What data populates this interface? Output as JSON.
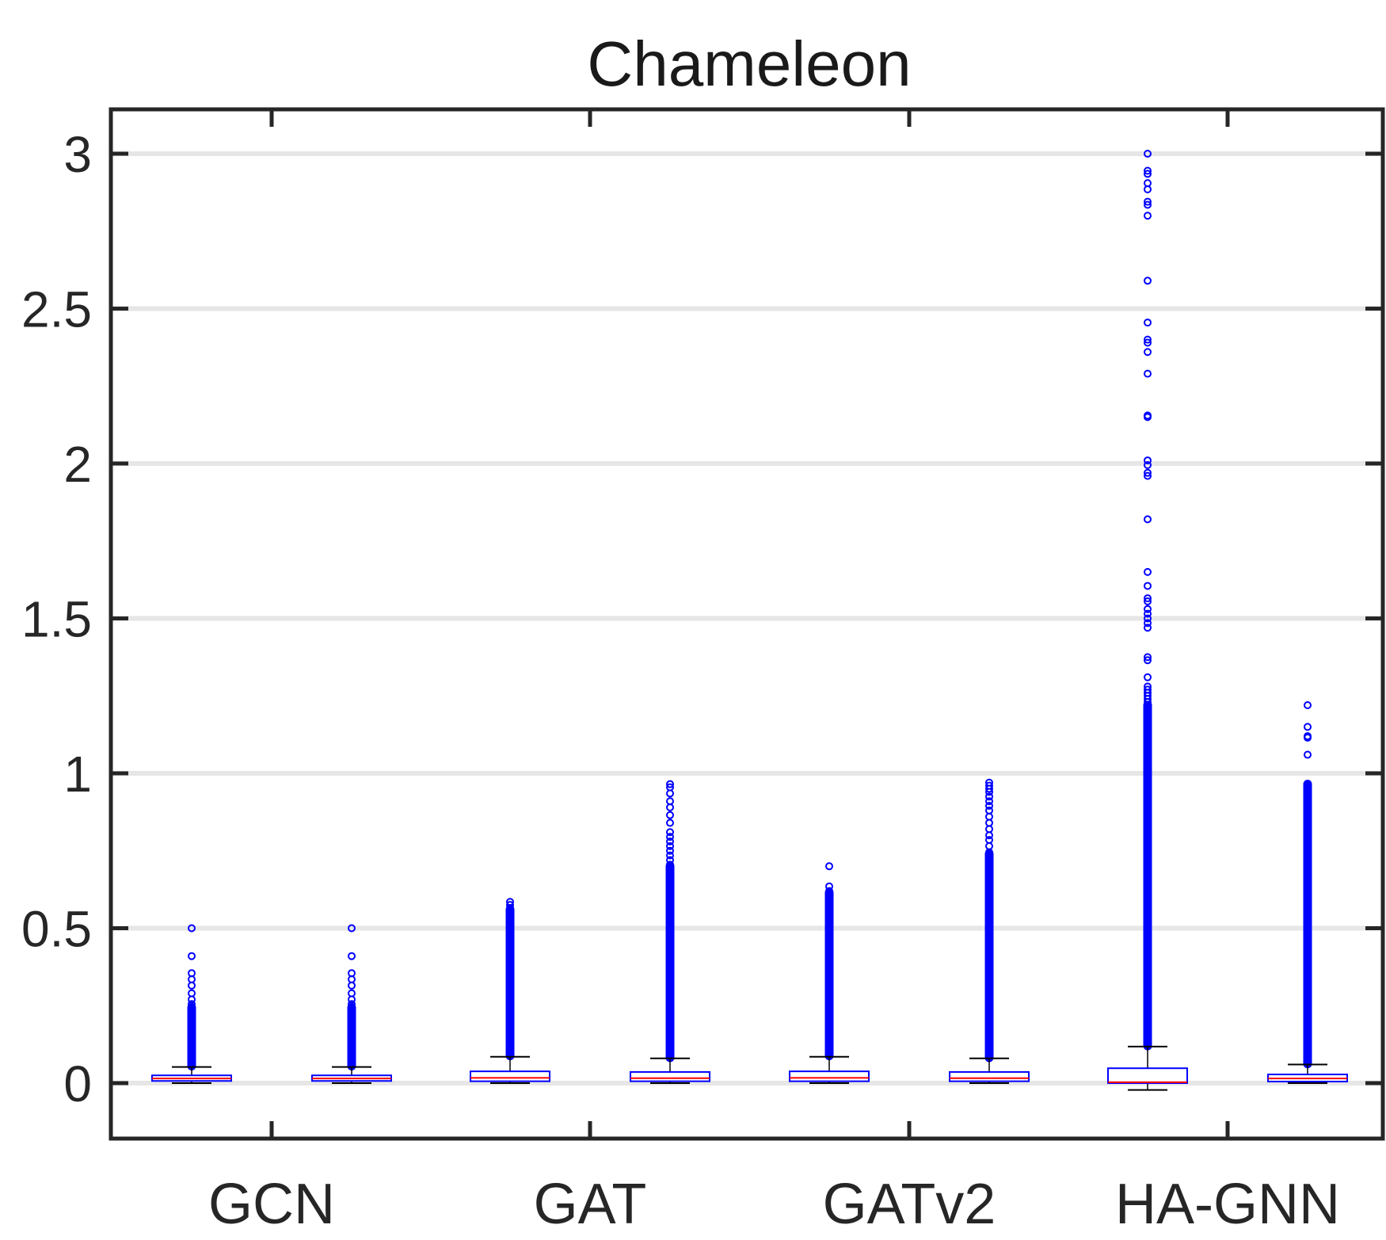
{
  "chart_data": {
    "type": "boxplot",
    "title": "Chameleon",
    "xlabel": "",
    "ylabel": "",
    "ylim": [
      -0.17,
      3.15
    ],
    "yticks": [
      0,
      0.5,
      1,
      1.5,
      2,
      2.5,
      3
    ],
    "ytick_labels": [
      "0",
      "0.5",
      "1",
      "1.5",
      "2",
      "2.5",
      "3"
    ],
    "grid": "horizontal",
    "categories": [
      "GCN",
      "GAT",
      "GATv2",
      "HA-GNN"
    ],
    "colors": {
      "box": "#0000ff",
      "median": "#ff0000",
      "outlier": "#0000ff",
      "whisker": "#000000",
      "grid": "#e6e6e6",
      "axis": "#262626"
    },
    "boxes": [
      {
        "group": "GCN",
        "slot": 0,
        "q1": 0.007,
        "median": 0.015,
        "q3": 0.025,
        "whisker_low": 0.0,
        "whisker_high": 0.052,
        "outliers": [
          0.5,
          0.41,
          0.355,
          0.335,
          0.315,
          0.29,
          0.27,
          0.255
        ],
        "outlier_band": [
          0.055,
          0.245
        ]
      },
      {
        "group": "GCN",
        "slot": 1,
        "q1": 0.007,
        "median": 0.015,
        "q3": 0.025,
        "whisker_low": 0.0,
        "whisker_high": 0.052,
        "outliers": [
          0.5,
          0.41,
          0.355,
          0.335,
          0.315,
          0.29,
          0.27,
          0.255
        ],
        "outlier_band": [
          0.055,
          0.245
        ]
      },
      {
        "group": "GAT",
        "slot": 0,
        "q1": 0.006,
        "median": 0.017,
        "q3": 0.038,
        "whisker_low": 0.0,
        "whisker_high": 0.085,
        "outliers": [
          0.585,
          0.575,
          0.565
        ],
        "outlier_band": [
          0.088,
          0.56
        ]
      },
      {
        "group": "GAT",
        "slot": 1,
        "q1": 0.006,
        "median": 0.016,
        "q3": 0.036,
        "whisker_low": 0.0,
        "whisker_high": 0.08,
        "outliers": [
          0.965,
          0.955,
          0.935,
          0.91,
          0.89,
          0.865,
          0.84,
          0.81,
          0.795,
          0.78,
          0.765,
          0.75,
          0.735,
          0.72,
          0.705
        ],
        "outlier_band": [
          0.082,
          0.7
        ]
      },
      {
        "group": "GATv2",
        "slot": 0,
        "q1": 0.006,
        "median": 0.017,
        "q3": 0.038,
        "whisker_low": 0.0,
        "whisker_high": 0.085,
        "outliers": [
          0.7,
          0.635,
          0.62
        ],
        "outlier_band": [
          0.088,
          0.615
        ]
      },
      {
        "group": "GATv2",
        "slot": 1,
        "q1": 0.006,
        "median": 0.016,
        "q3": 0.036,
        "whisker_low": 0.0,
        "whisker_high": 0.08,
        "outliers": [
          0.97,
          0.96,
          0.95,
          0.94,
          0.925,
          0.91,
          0.895,
          0.88,
          0.86,
          0.84,
          0.82,
          0.8,
          0.785,
          0.765,
          0.745
        ],
        "outlier_band": [
          0.082,
          0.74
        ]
      },
      {
        "group": "HA-GNN",
        "slot": 0,
        "q1": 0.0,
        "median": 0.003,
        "q3": 0.048,
        "whisker_low": -0.022,
        "whisker_high": 0.118,
        "outliers": [
          3.0,
          2.945,
          2.935,
          2.905,
          2.885,
          2.845,
          2.835,
          2.8,
          2.59,
          2.455,
          2.4,
          2.39,
          2.36,
          2.29,
          2.155,
          2.15,
          2.01,
          1.995,
          1.97,
          1.96,
          1.82,
          1.65,
          1.605,
          1.565,
          1.555,
          1.53,
          1.515,
          1.5,
          1.485,
          1.47,
          1.375,
          1.365,
          1.31,
          1.28,
          1.27,
          1.26,
          1.25,
          1.24,
          1.23
        ],
        "outlier_band": [
          0.12,
          1.22
        ]
      },
      {
        "group": "HA-GNN",
        "slot": 1,
        "q1": 0.005,
        "median": 0.015,
        "q3": 0.028,
        "whisker_low": 0.0,
        "whisker_high": 0.06,
        "outliers": [
          1.22,
          1.15,
          1.12,
          1.115,
          1.06
        ],
        "outlier_band": [
          0.062,
          0.965
        ]
      }
    ]
  }
}
